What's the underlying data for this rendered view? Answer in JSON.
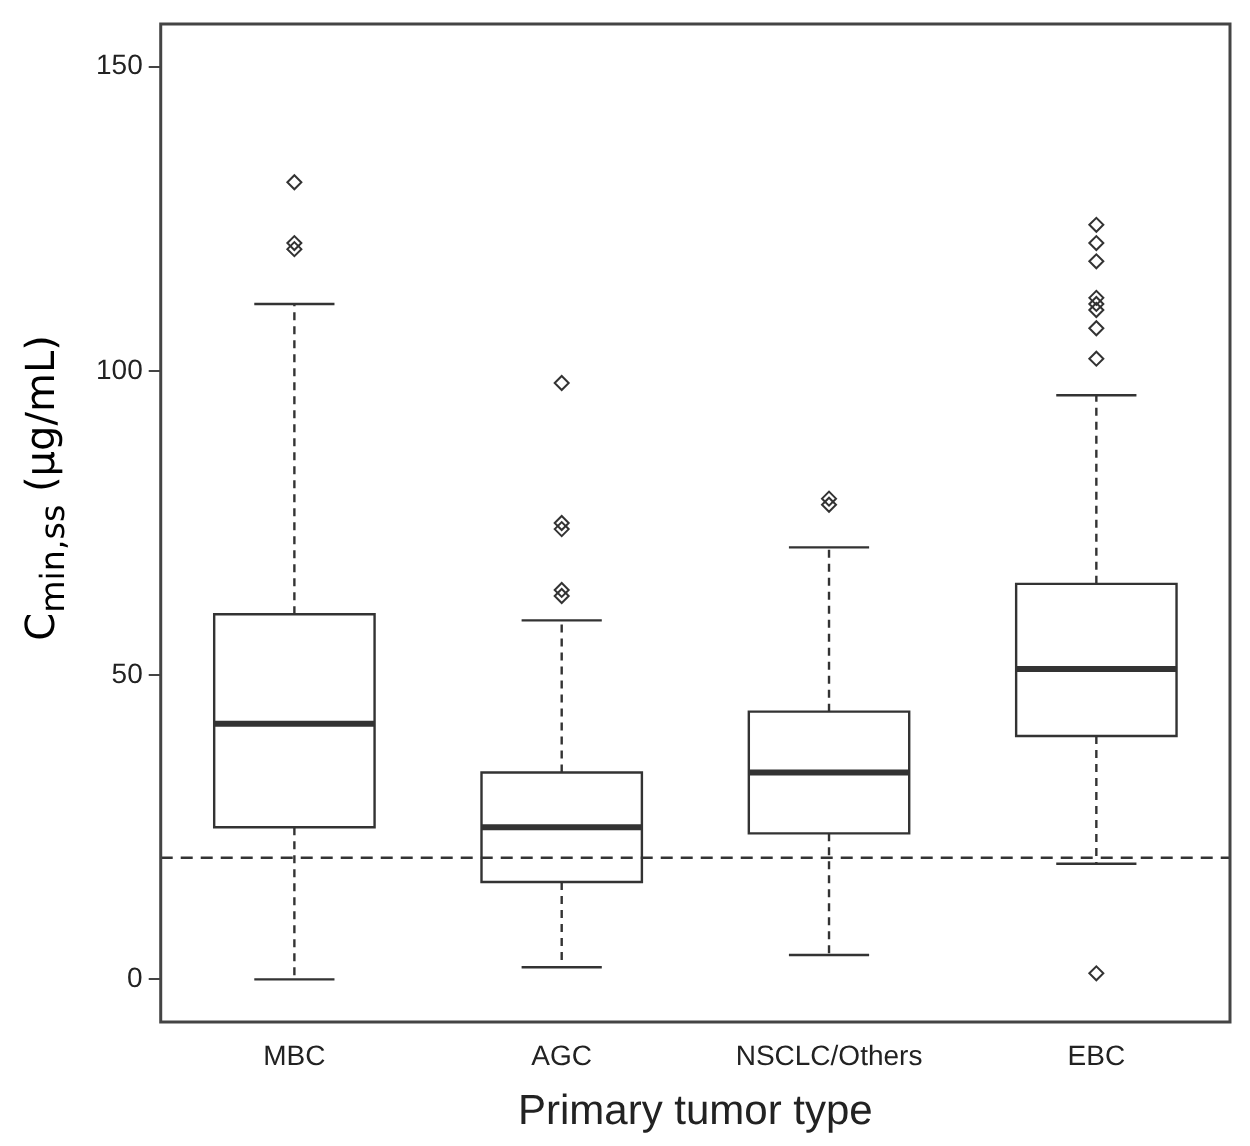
{
  "chart_data": {
    "type": "box",
    "xlabel": "Primary tumor type",
    "ylabel": "C$_{min,ss}$ (μg/mL)",
    "categories": [
      "MBC",
      "AGC",
      "NSCLC/Others",
      "EBC"
    ],
    "boxes": [
      {
        "low": 0,
        "q1": 25,
        "median": 42,
        "q3": 60,
        "high": 111,
        "outliers": [
          131,
          121,
          120
        ]
      },
      {
        "low": 2,
        "q1": 16,
        "median": 25,
        "q3": 34,
        "high": 59,
        "outliers": [
          98,
          75,
          74,
          64,
          63
        ]
      },
      {
        "low": 4,
        "q1": 24,
        "median": 34,
        "q3": 44,
        "high": 71,
        "outliers": [
          79,
          78
        ]
      },
      {
        "low": 19,
        "q1": 40,
        "median": 51,
        "q3": 65,
        "high": 96,
        "outliers": [
          124,
          121,
          118,
          112,
          111,
          110,
          107,
          102,
          1
        ]
      }
    ],
    "ylim": [
      -7,
      157
    ],
    "yticks": [
      0,
      50,
      100,
      150
    ],
    "ref_lines": [
      {
        "axis": "y",
        "value": 20,
        "line_style": "dashed"
      }
    ],
    "grid": false,
    "marker": "diamond"
  }
}
